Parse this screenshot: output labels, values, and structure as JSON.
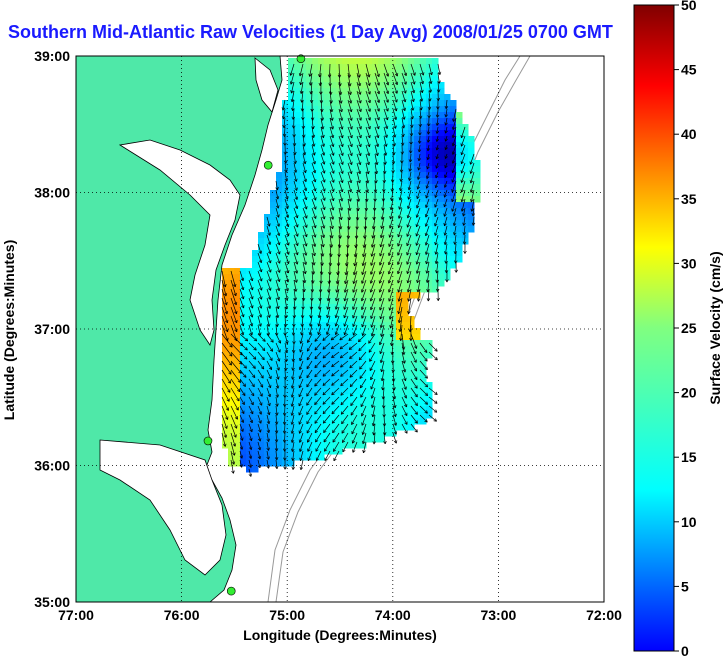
{
  "title": "Southern Mid-Atlantic Raw Velocities (1 Day Avg) 2008/01/25 0700 GMT",
  "map": {
    "xlabel": "Longitude (Degrees:Minutes)",
    "ylabel": "Latitude (Degrees:Minutes)",
    "lon_ticks": [
      "77:00",
      "76:00",
      "75:00",
      "74:00",
      "73:00",
      "72:00"
    ],
    "lat_ticks": [
      "39:00",
      "38:00",
      "37:00",
      "36:00",
      "35:00"
    ],
    "lon_range": [
      -77,
      -72
    ],
    "lat_range": [
      35,
      39
    ],
    "grid": "dotted",
    "land_color": "#4fe8a8",
    "ocean_color": "#ffffff",
    "station_color": "#33ee33",
    "stations": [
      {
        "lon": -74.87,
        "lat": 38.98
      },
      {
        "lon": -75.18,
        "lat": 38.2
      },
      {
        "lon": -75.75,
        "lat": 36.18
      },
      {
        "lon": -75.53,
        "lat": 35.08
      }
    ]
  },
  "colorbar": {
    "label": "Surface Velocity (cm/s)",
    "range": [
      0,
      50
    ],
    "ticks": [
      "0",
      "5",
      "10",
      "15",
      "20",
      "25",
      "30",
      "35",
      "40",
      "45",
      "50"
    ],
    "colormap": "jet"
  }
}
